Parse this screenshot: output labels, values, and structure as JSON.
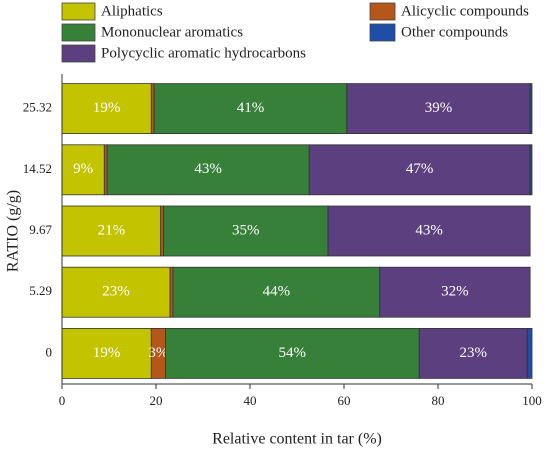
{
  "chart_data": {
    "type": "bar",
    "orientation": "horizontal",
    "stacked": true,
    "title": "",
    "xlabel": "Relative content in tar (%)",
    "ylabel": "RATIO (g/g)",
    "xlim": [
      0,
      100
    ],
    "xticks": [
      "0",
      "20",
      "40",
      "60",
      "80",
      "100"
    ],
    "categories": [
      "25.32",
      "14.52",
      "9.67",
      "5.29",
      "0"
    ],
    "legend_position": "top",
    "grid": false,
    "series": [
      {
        "name": "Aliphatics",
        "color": "#c3c300",
        "values": [
          19,
          9,
          21,
          23,
          19
        ],
        "labels": [
          "19%",
          "9%",
          "21%",
          "23%",
          "19%"
        ]
      },
      {
        "name": "Alicyclic compounds",
        "color": "#b5561b",
        "values": [
          0.6,
          0.6,
          0.6,
          0.6,
          3
        ],
        "labels": [
          "",
          "",
          "",
          "",
          "3%"
        ]
      },
      {
        "name": "Mononuclear aromatics",
        "color": "#36803a",
        "values": [
          41,
          43,
          35,
          44,
          54
        ],
        "labels": [
          "41%",
          "43%",
          "35%",
          "44%",
          "54%"
        ]
      },
      {
        "name": "Polycyclic aromatic hydrocarbons",
        "color": "#5c3f7e",
        "values": [
          39,
          47,
          43,
          32,
          23
        ],
        "labels": [
          "39%",
          "47%",
          "43%",
          "32%",
          "23%"
        ]
      },
      {
        "name": "Other compounds",
        "color": "#1f4ea8",
        "values": [
          0.4,
          0.4,
          0,
          0,
          1.4
        ],
        "labels": [
          "",
          "",
          "",
          "",
          ""
        ]
      }
    ]
  }
}
